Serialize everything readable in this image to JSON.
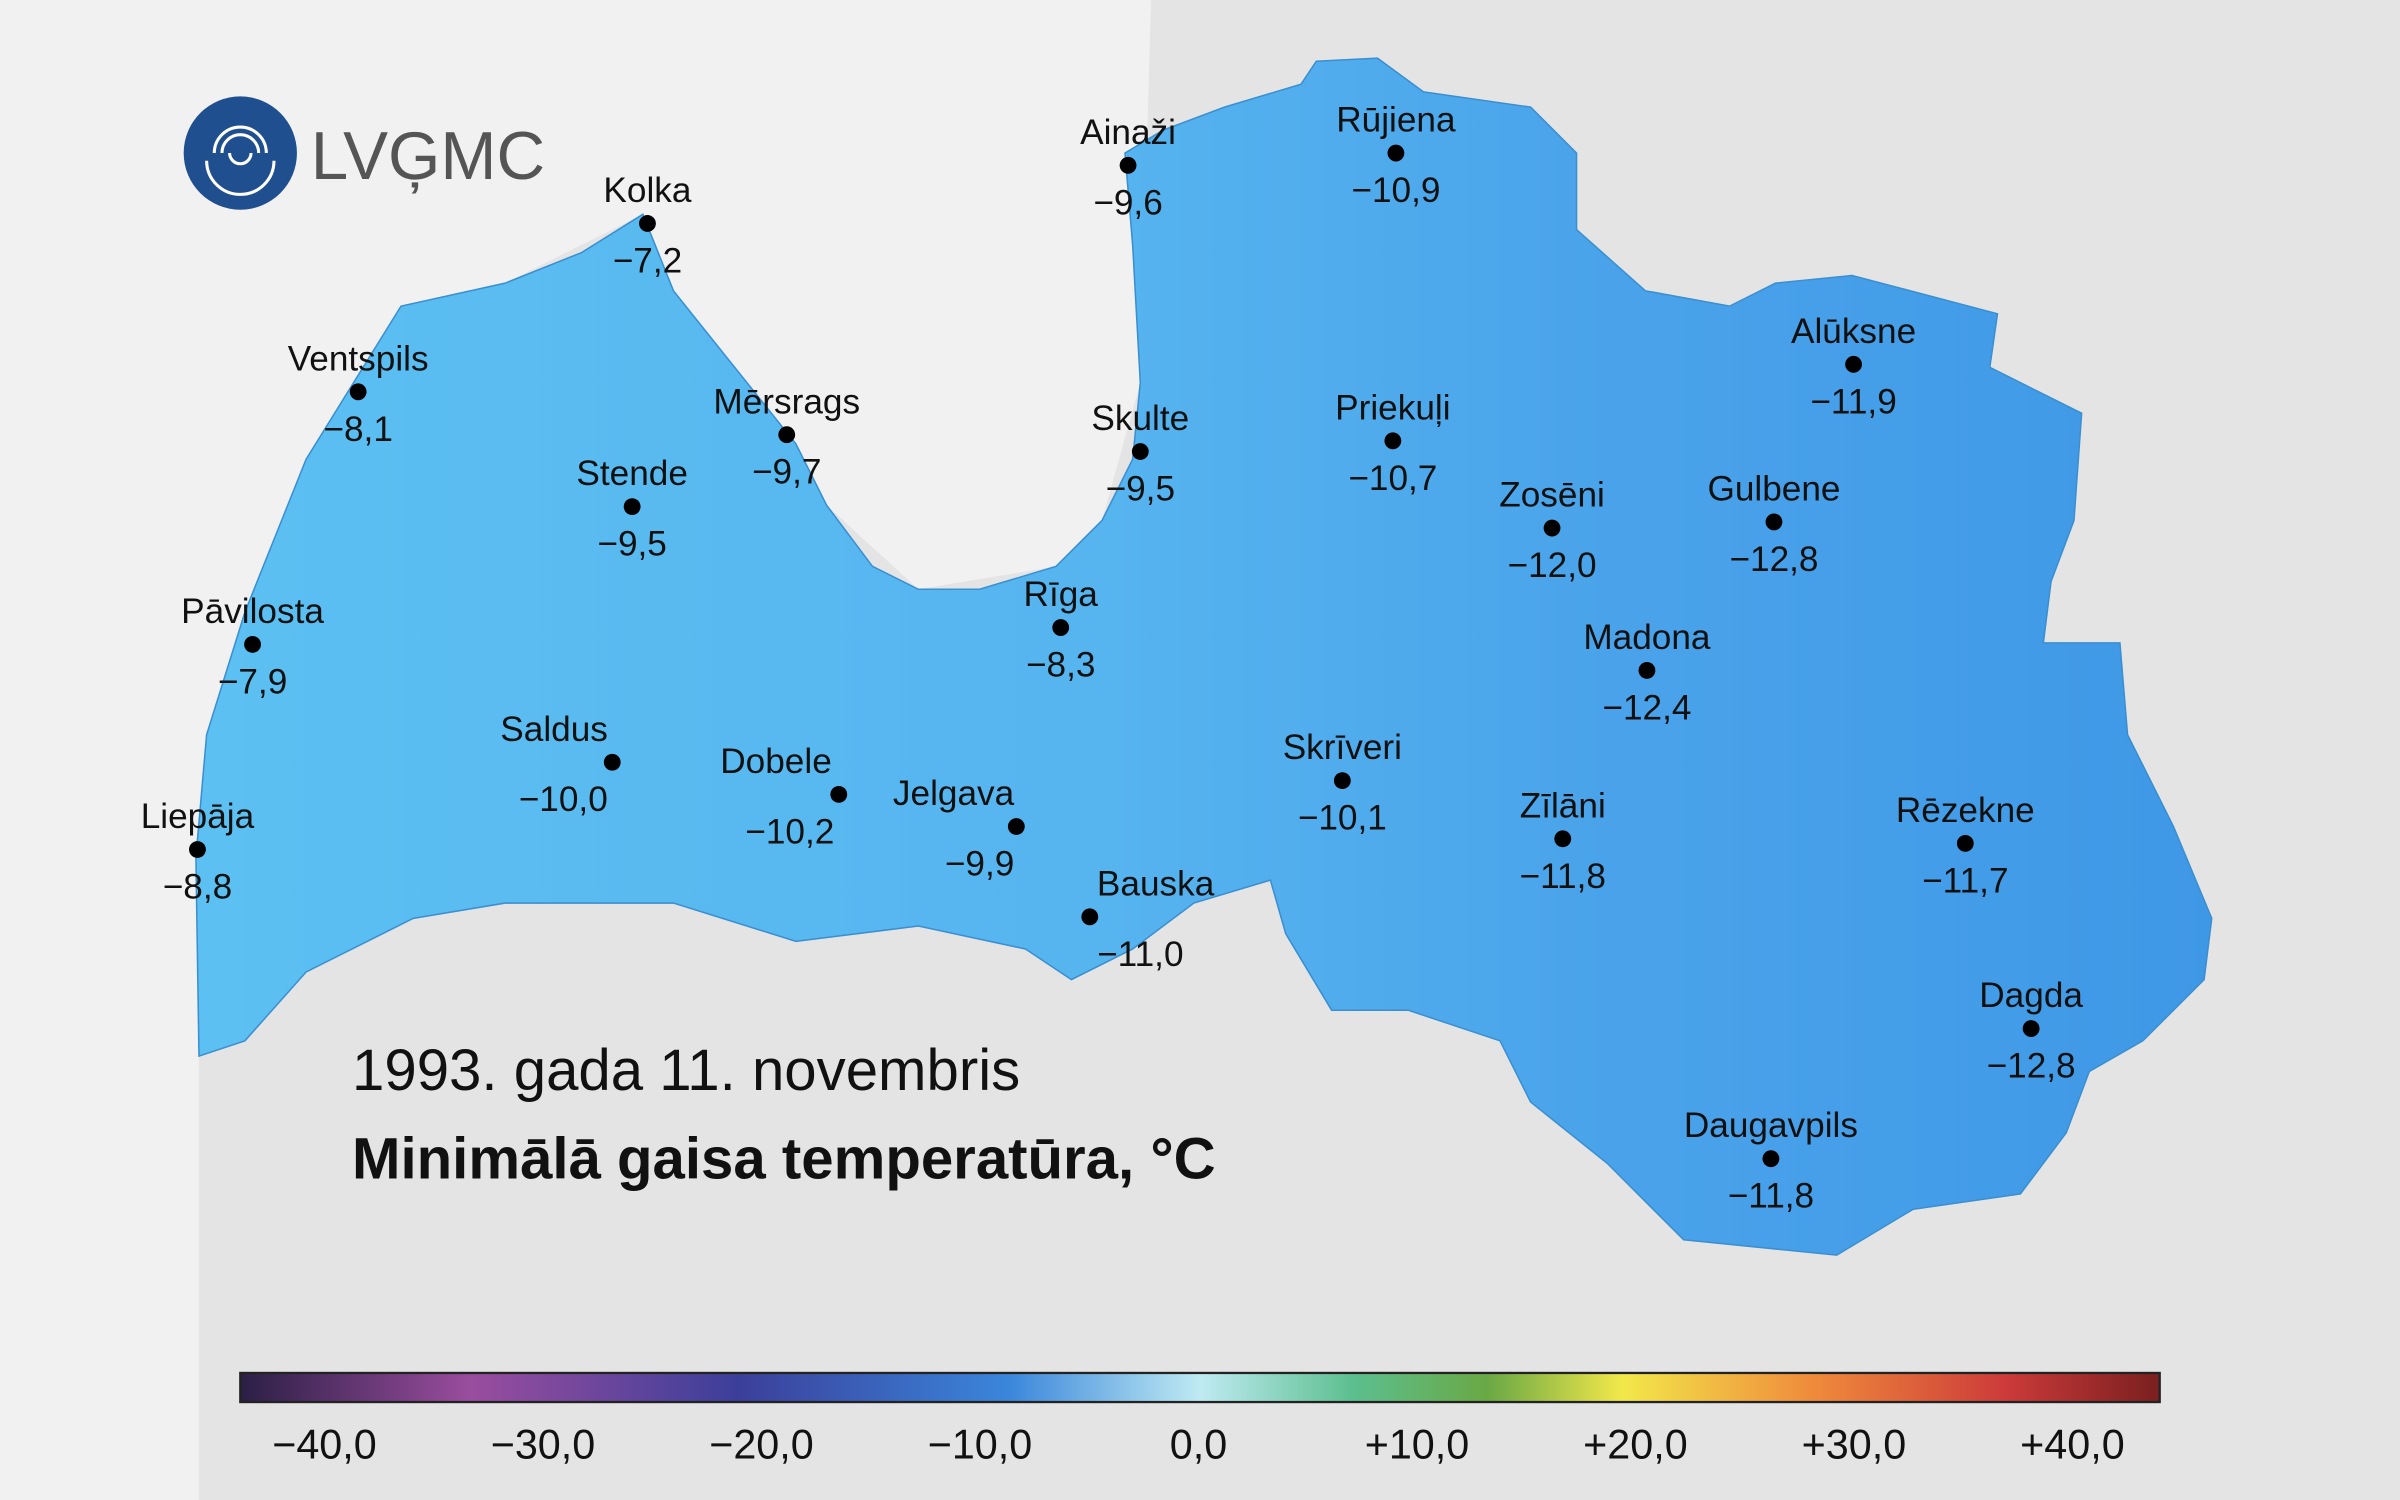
{
  "logo": "LVĢMC",
  "date": "1993. gada 11. novembris",
  "title": "Minimālā gaisa temperatūra, °C",
  "stations": [
    {
      "name": "Kolka",
      "value": "−7,2"
    },
    {
      "name": "Ainaži",
      "value": "−9,6"
    },
    {
      "name": "Rūjiena",
      "value": "−10,9"
    },
    {
      "name": "Ventspils",
      "value": "−8,1"
    },
    {
      "name": "Mērsrags",
      "value": "−9,7"
    },
    {
      "name": "Skulte",
      "value": "−9,5"
    },
    {
      "name": "Priekuļi",
      "value": "−10,7"
    },
    {
      "name": "Alūksne",
      "value": "−11,9"
    },
    {
      "name": "Stende",
      "value": "−9,5"
    },
    {
      "name": "Zosēni",
      "value": "−12,0"
    },
    {
      "name": "Gulbene",
      "value": "−12,8"
    },
    {
      "name": "Pāvilosta",
      "value": "−7,9"
    },
    {
      "name": "Rīga",
      "value": "−8,3"
    },
    {
      "name": "Madona",
      "value": "−12,4"
    },
    {
      "name": "Saldus",
      "value": "−10,0"
    },
    {
      "name": "Dobele",
      "value": "−10,2"
    },
    {
      "name": "Jelgava",
      "value": "−9,9"
    },
    {
      "name": "Skrīveri",
      "value": "−10,1"
    },
    {
      "name": "Zīlāni",
      "value": "−11,8"
    },
    {
      "name": "Rēzekne",
      "value": "−11,7"
    },
    {
      "name": "Liepāja",
      "value": "−8,8"
    },
    {
      "name": "Bauska",
      "value": "−11,0"
    },
    {
      "name": "Dagda",
      "value": "−12,8"
    },
    {
      "name": "Daugavpils",
      "value": "−11,8"
    }
  ],
  "colorbar": {
    "ticks": [
      "−40,0",
      "−30,0",
      "−20,0",
      "−10,0",
      "0,0",
      "+10,0",
      "+20,0",
      "+30,0",
      "+40,0"
    ]
  }
}
